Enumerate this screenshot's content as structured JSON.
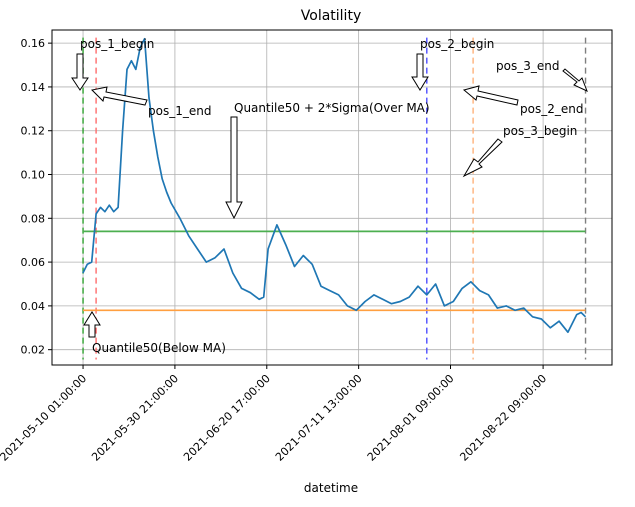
{
  "chart_data": {
    "type": "line",
    "title": "Volatility",
    "xlabel": "datetime",
    "ylabel": "",
    "ylim": [
      0.013,
      0.166
    ],
    "xlim": [
      "2021-05-03 00:00:00",
      "2021-09-07 00:00:00"
    ],
    "grid": true,
    "legend": "none",
    "x_ticks": [
      "2021-05-10 01:00:00",
      "2021-05-30 21:00:00",
      "2021-06-20 17:00:00",
      "2021-07-11 13:00:00",
      "2021-08-01 09:00:00",
      "2021-08-22 09:00:00"
    ],
    "y_ticks": [
      "0.02",
      "0.04",
      "0.06",
      "0.08",
      "0.10",
      "0.12",
      "0.14",
      "0.16"
    ],
    "series": [
      {
        "color": "#1f77b4",
        "x": [
          "2021-05-10",
          "2021-05-11",
          "2021-05-12",
          "2021-05-13",
          "2021-05-14",
          "2021-05-15",
          "2021-05-16",
          "2021-05-17",
          "2021-05-18",
          "2021-05-19",
          "2021-05-20",
          "2021-05-21",
          "2021-05-22",
          "2021-05-23",
          "2021-05-24",
          "2021-05-25",
          "2021-05-26",
          "2021-05-27",
          "2021-05-28",
          "2021-05-29",
          "2021-05-30",
          "2021-06-01",
          "2021-06-03",
          "2021-06-05",
          "2021-06-07",
          "2021-06-09",
          "2021-06-11",
          "2021-06-13",
          "2021-06-15",
          "2021-06-17",
          "2021-06-19",
          "2021-06-20",
          "2021-06-21",
          "2021-06-23",
          "2021-06-25",
          "2021-06-27",
          "2021-06-29",
          "2021-07-01",
          "2021-07-03",
          "2021-07-05",
          "2021-07-07",
          "2021-07-09",
          "2021-07-11",
          "2021-07-13",
          "2021-07-15",
          "2021-07-17",
          "2021-07-19",
          "2021-07-21",
          "2021-07-23",
          "2021-07-25",
          "2021-07-27",
          "2021-07-29",
          "2021-07-31",
          "2021-08-02",
          "2021-08-04",
          "2021-08-06",
          "2021-08-08",
          "2021-08-10",
          "2021-08-12",
          "2021-08-14",
          "2021-08-16",
          "2021-08-18",
          "2021-08-20",
          "2021-08-22",
          "2021-08-24",
          "2021-08-26",
          "2021-08-28",
          "2021-08-30",
          "2021-08-31",
          "2021-09-01"
        ],
        "y": [
          0.055,
          0.059,
          0.06,
          0.082,
          0.085,
          0.083,
          0.086,
          0.083,
          0.085,
          0.12,
          0.148,
          0.152,
          0.148,
          0.158,
          0.162,
          0.135,
          0.12,
          0.108,
          0.098,
          0.092,
          0.087,
          0.08,
          0.072,
          0.066,
          0.06,
          0.062,
          0.066,
          0.055,
          0.048,
          0.046,
          0.043,
          0.044,
          0.066,
          0.077,
          0.068,
          0.058,
          0.063,
          0.059,
          0.049,
          0.047,
          0.045,
          0.04,
          0.038,
          0.042,
          0.045,
          0.043,
          0.041,
          0.042,
          0.044,
          0.049,
          0.045,
          0.05,
          0.04,
          0.042,
          0.048,
          0.051,
          0.047,
          0.045,
          0.039,
          0.04,
          0.038,
          0.039,
          0.035,
          0.034,
          0.03,
          0.033,
          0.028,
          0.036,
          0.037,
          0.035
        ]
      },
      {
        "color": "#4caf50",
        "x": [
          "2021-05-10 01:00:00",
          "2021-09-01 00:00:00"
        ],
        "y": [
          0.074,
          0.074
        ]
      },
      {
        "color": "#ff9f40",
        "x": [
          "2021-05-10 01:00:00",
          "2021-09-01 00:00:00"
        ],
        "y": [
          0.038,
          0.038
        ]
      }
    ],
    "vlines": [
      {
        "x": "2021-05-10 01:00:00",
        "color": "#2ca02c"
      },
      {
        "x": "2021-05-13 00:00:00",
        "color": "#ff6b6b"
      },
      {
        "x": "2021-07-27 00:00:00",
        "color": "#4d4dff"
      },
      {
        "x": "2021-08-06 12:00:00",
        "color": "#ffb27a"
      },
      {
        "x": "2021-09-01 00:00:00",
        "color": "#7f7f7f"
      }
    ],
    "annotations": [
      {
        "text": "pos_1_begin"
      },
      {
        "text": "pos_1_end"
      },
      {
        "text": "Quantile50 + 2*Sigma(Over MA)"
      },
      {
        "text": "pos_2_begin"
      },
      {
        "text": "pos_3_end"
      },
      {
        "text": "pos_2_end"
      },
      {
        "text": "pos_3_begin"
      },
      {
        "text": "Quantile50(Below MA)"
      }
    ]
  }
}
